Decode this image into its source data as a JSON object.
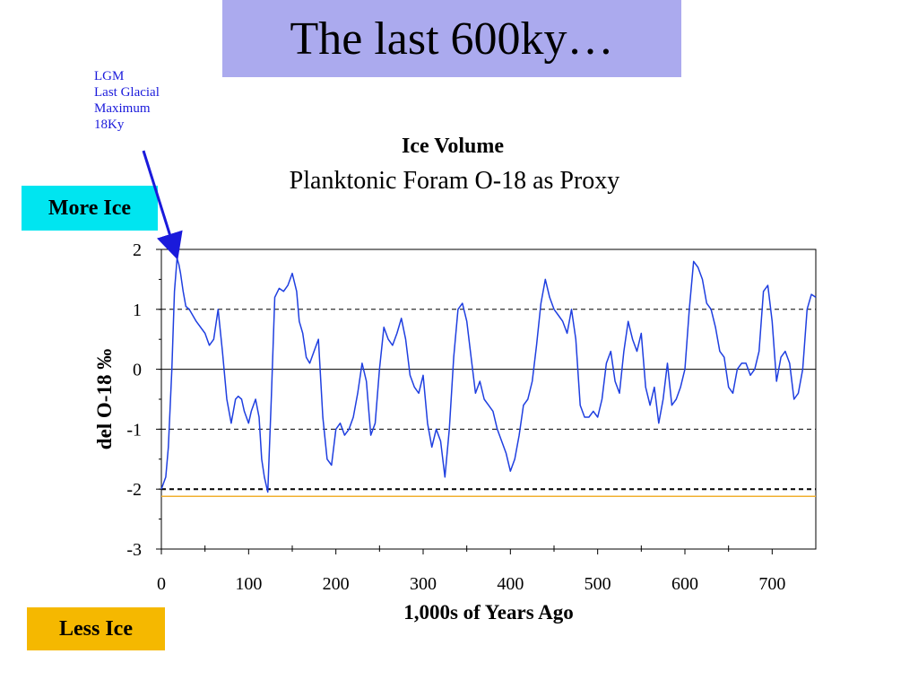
{
  "slide": {
    "title": "The last 600ky…",
    "title_bg": "#abaaee",
    "annotation_lines": [
      "LGM",
      "Last Glacial",
      "Maximum",
      "18Ky"
    ],
    "annotation_color": "#1a1adb",
    "more_ice_label": "More Ice",
    "more_ice_color": "#00e5f0",
    "less_ice_label": "Less Ice",
    "less_ice_color": "#f5b800"
  },
  "chart_data": {
    "type": "line",
    "title": "Ice Volume",
    "subtitle": "Planktonic Foram O-18 as Proxy",
    "xlabel": "1,000s of Years Ago",
    "ylabel": "del O-18 ‰",
    "xlim": [
      0,
      750
    ],
    "ylim": [
      -3,
      2
    ],
    "xticks": [
      0,
      100,
      200,
      300,
      400,
      500,
      600,
      700
    ],
    "yticks": [
      2,
      1,
      0,
      -1,
      -2,
      -3
    ],
    "grid": {
      "dashed_y": [
        1,
        -1,
        -2
      ],
      "solid_y": [
        0
      ]
    },
    "reference_line": {
      "y": -2.12,
      "color": "#f0b030"
    },
    "line_color": "#1f3fe0",
    "annotation": {
      "text": "LGM",
      "x": 18,
      "y": 1.85
    },
    "series": [
      {
        "x": [
          0,
          5,
          8,
          12,
          15,
          18,
          20,
          22,
          25,
          28,
          32,
          40,
          50,
          55,
          60,
          65,
          70,
          75,
          80,
          85,
          88,
          92,
          95,
          100,
          103,
          108,
          112,
          115,
          118,
          122,
          126,
          130,
          135,
          140,
          145,
          150,
          155,
          158,
          162,
          166,
          170,
          175,
          180,
          185,
          190,
          195,
          200,
          205,
          210,
          215,
          220,
          225,
          230,
          235,
          240,
          245,
          250,
          255,
          260,
          265,
          270,
          275,
          280,
          285,
          290,
          295,
          300,
          305,
          310,
          315,
          320,
          325,
          330,
          335,
          340,
          345,
          350,
          355,
          360,
          365,
          370,
          375,
          380,
          385,
          390,
          395,
          400,
          405,
          410,
          415,
          420,
          425,
          430,
          435,
          440,
          445,
          450,
          455,
          460,
          465,
          470,
          475,
          480,
          485,
          490,
          495,
          500,
          505,
          510,
          515,
          520,
          525,
          530,
          535,
          540,
          545,
          550,
          555,
          560,
          565,
          570,
          575,
          580,
          585,
          590,
          595,
          600,
          605,
          610,
          615,
          620,
          625,
          630,
          635,
          640,
          645,
          650,
          655,
          660,
          665,
          670,
          675,
          680,
          685,
          690,
          695,
          700,
          705,
          710,
          715,
          720,
          725,
          730,
          735,
          740,
          745,
          750
        ],
        "values": [
          -2.0,
          -1.8,
          -1.3,
          0.0,
          1.3,
          1.85,
          1.75,
          1.6,
          1.3,
          1.05,
          1.0,
          0.8,
          0.6,
          0.4,
          0.5,
          1.0,
          0.3,
          -0.5,
          -0.9,
          -0.5,
          -0.45,
          -0.5,
          -0.7,
          -0.9,
          -0.7,
          -0.5,
          -0.8,
          -1.5,
          -1.8,
          -2.05,
          -0.5,
          1.2,
          1.35,
          1.3,
          1.4,
          1.6,
          1.3,
          0.8,
          0.6,
          0.2,
          0.1,
          0.3,
          0.5,
          -0.8,
          -1.5,
          -1.6,
          -1.0,
          -0.9,
          -1.1,
          -1.0,
          -0.8,
          -0.4,
          0.1,
          -0.2,
          -1.1,
          -0.9,
          0.0,
          0.7,
          0.5,
          0.4,
          0.6,
          0.85,
          0.5,
          -0.1,
          -0.3,
          -0.4,
          -0.1,
          -0.9,
          -1.3,
          -1.0,
          -1.2,
          -1.8,
          -1.0,
          0.2,
          1.0,
          1.1,
          0.8,
          0.2,
          -0.4,
          -0.2,
          -0.5,
          -0.6,
          -0.7,
          -1.0,
          -1.2,
          -1.4,
          -1.7,
          -1.5,
          -1.1,
          -0.6,
          -0.5,
          -0.2,
          0.4,
          1.1,
          1.5,
          1.2,
          1.0,
          0.9,
          0.8,
          0.6,
          1.0,
          0.5,
          -0.6,
          -0.8,
          -0.8,
          -0.7,
          -0.8,
          -0.5,
          0.1,
          0.3,
          -0.2,
          -0.4,
          0.3,
          0.8,
          0.5,
          0.3,
          0.6,
          -0.3,
          -0.6,
          -0.3,
          -0.9,
          -0.5,
          0.1,
          -0.6,
          -0.5,
          -0.3,
          0.0,
          1.0,
          1.8,
          1.7,
          1.5,
          1.1,
          1.0,
          0.7,
          0.3,
          0.2,
          -0.3,
          -0.4,
          0.0,
          0.1,
          0.1,
          -0.1,
          0.0,
          0.3,
          1.3,
          1.4,
          0.8,
          -0.2,
          0.2,
          0.3,
          0.1,
          -0.5,
          -0.4,
          0.0,
          1.0,
          1.25,
          1.2
        ]
      }
    ]
  }
}
